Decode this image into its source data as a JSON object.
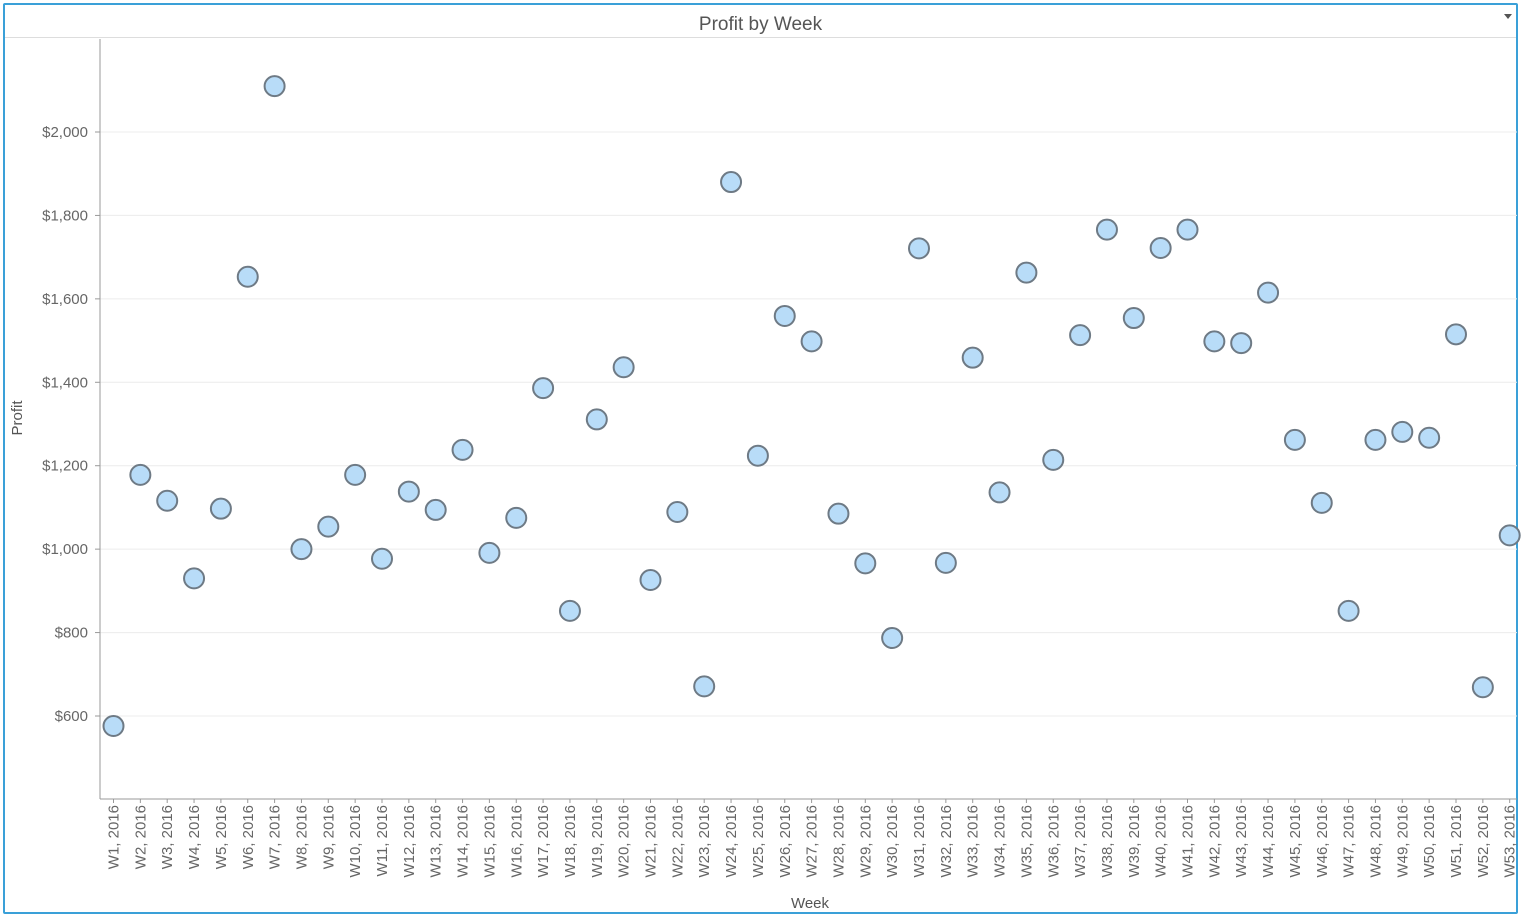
{
  "window": {
    "title": "Profit by Week",
    "menu_icon": "chevron-down-icon"
  },
  "colors": {
    "point_fill": "#b8dcf8",
    "point_stroke": "#6e7a85",
    "axis": "#999999",
    "grid": "#ececec",
    "frame": "#3aa0d8"
  },
  "chart_data": {
    "type": "scatter",
    "title": "Profit by Week",
    "xlabel": "Week",
    "ylabel": "Profit",
    "yticks": [
      "$600",
      "$800",
      "$1,000",
      "$1,200",
      "$1,400",
      "$1,600",
      "$1,800",
      "$2,000"
    ],
    "ytick_values": [
      600,
      800,
      1000,
      1200,
      1400,
      1600,
      1800,
      2000
    ],
    "ylim": [
      400,
      2200
    ],
    "grid": true,
    "legend": "none",
    "categories": [
      "W1, 2016",
      "W2, 2016",
      "W3, 2016",
      "W4, 2016",
      "W5, 2016",
      "W6, 2016",
      "W7, 2016",
      "W8, 2016",
      "W9, 2016",
      "W10, 2016",
      "W11, 2016",
      "W12, 2016",
      "W13, 2016",
      "W14, 2016",
      "W15, 2016",
      "W16, 2016",
      "W17, 2016",
      "W18, 2016",
      "W19, 2016",
      "W20, 2016",
      "W21, 2016",
      "W22, 2016",
      "W23, 2016",
      "W24, 2016",
      "W25, 2016",
      "W26, 2016",
      "W27, 2016",
      "W28, 2016",
      "W29, 2016",
      "W30, 2016",
      "W31, 2016",
      "W32, 2016",
      "W33, 2016",
      "W34, 2016",
      "W35, 2016",
      "W36, 2016",
      "W37, 2016",
      "W38, 2016",
      "W39, 2016",
      "W40, 2016",
      "W41, 2016",
      "W42, 2016",
      "W43, 2016",
      "W44, 2016",
      "W45, 2016",
      "W46, 2016",
      "W47, 2016",
      "W48, 2016",
      "W49, 2016",
      "W50, 2016",
      "W51, 2016",
      "W52, 2016",
      "W53, 2016"
    ],
    "values": [
      576,
      1178,
      1116,
      930,
      1097,
      1653,
      2110,
      1000,
      1054,
      1178,
      977,
      1138,
      1094,
      1238,
      991,
      1075,
      1386,
      852,
      1311,
      1436,
      926,
      1089,
      671,
      1880,
      1224,
      1559,
      1498,
      1085,
      966,
      787,
      1721,
      967,
      1459,
      1136,
      1663,
      1214,
      1513,
      1766,
      1554,
      1722,
      1766,
      1498,
      1494,
      1615,
      1262,
      1111,
      852,
      1262,
      1281,
      1267,
      1515,
      669,
      1033
    ]
  }
}
